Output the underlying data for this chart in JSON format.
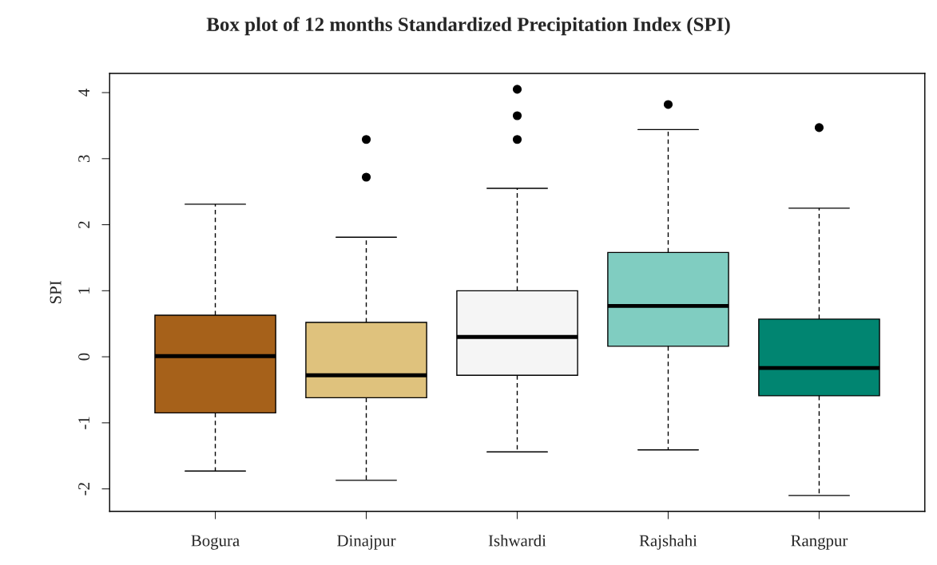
{
  "chart_data": {
    "type": "box",
    "title": "Box plot of 12 months Standardized Precipitation Index (SPI)",
    "ylabel": "SPI",
    "categories": [
      "Bogura",
      "Dinajpur",
      "Ishwardi",
      "Rajshahi",
      "Rangpur"
    ],
    "colors": [
      "#a6611a",
      "#dfc27d",
      "#f5f5f5",
      "#80cdc1",
      "#018571"
    ],
    "boxes": [
      {
        "low": -1.73,
        "q1": -0.85,
        "median": 0.01,
        "q3": 0.63,
        "high": 2.31
      },
      {
        "low": -1.87,
        "q1": -0.62,
        "median": -0.28,
        "q3": 0.52,
        "high": 1.81,
        "outliers": [
          2.72,
          3.29
        ]
      },
      {
        "low": -1.44,
        "q1": -0.28,
        "median": 0.3,
        "q3": 1.0,
        "high": 2.55,
        "outliers": [
          3.29,
          3.65,
          4.05
        ]
      },
      {
        "low": -1.41,
        "q1": 0.16,
        "median": 0.77,
        "q3": 1.58,
        "high": 3.44,
        "outliers": [
          3.82
        ]
      },
      {
        "low": -2.1,
        "q1": -0.59,
        "median": -0.17,
        "q3": 0.57,
        "high": 2.25,
        "outliers": [
          3.47
        ]
      }
    ],
    "ylim": [
      -2.34,
      4.29
    ],
    "yticks": [
      -2,
      -1,
      0,
      1,
      2,
      3,
      4
    ],
    "grid": false
  }
}
